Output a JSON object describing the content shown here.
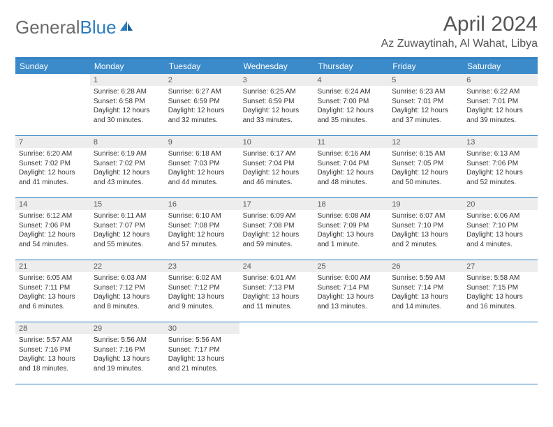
{
  "logo": {
    "general": "General",
    "blue": "Blue"
  },
  "title": "April 2024",
  "location": "Az Zuwaytinah, Al Wahat, Libya",
  "colors": {
    "header_bg": "#3b8aca",
    "border": "#2b7bbf",
    "daynum_bg": "#ededed",
    "text": "#333333",
    "muted": "#555555"
  },
  "day_names": [
    "Sunday",
    "Monday",
    "Tuesday",
    "Wednesday",
    "Thursday",
    "Friday",
    "Saturday"
  ],
  "weeks": [
    [
      {
        "day": "",
        "sunrise": "",
        "sunset": "",
        "daylight": ""
      },
      {
        "day": "1",
        "sunrise": "Sunrise: 6:28 AM",
        "sunset": "Sunset: 6:58 PM",
        "daylight": "Daylight: 12 hours and 30 minutes."
      },
      {
        "day": "2",
        "sunrise": "Sunrise: 6:27 AM",
        "sunset": "Sunset: 6:59 PM",
        "daylight": "Daylight: 12 hours and 32 minutes."
      },
      {
        "day": "3",
        "sunrise": "Sunrise: 6:25 AM",
        "sunset": "Sunset: 6:59 PM",
        "daylight": "Daylight: 12 hours and 33 minutes."
      },
      {
        "day": "4",
        "sunrise": "Sunrise: 6:24 AM",
        "sunset": "Sunset: 7:00 PM",
        "daylight": "Daylight: 12 hours and 35 minutes."
      },
      {
        "day": "5",
        "sunrise": "Sunrise: 6:23 AM",
        "sunset": "Sunset: 7:01 PM",
        "daylight": "Daylight: 12 hours and 37 minutes."
      },
      {
        "day": "6",
        "sunrise": "Sunrise: 6:22 AM",
        "sunset": "Sunset: 7:01 PM",
        "daylight": "Daylight: 12 hours and 39 minutes."
      }
    ],
    [
      {
        "day": "7",
        "sunrise": "Sunrise: 6:20 AM",
        "sunset": "Sunset: 7:02 PM",
        "daylight": "Daylight: 12 hours and 41 minutes."
      },
      {
        "day": "8",
        "sunrise": "Sunrise: 6:19 AM",
        "sunset": "Sunset: 7:02 PM",
        "daylight": "Daylight: 12 hours and 43 minutes."
      },
      {
        "day": "9",
        "sunrise": "Sunrise: 6:18 AM",
        "sunset": "Sunset: 7:03 PM",
        "daylight": "Daylight: 12 hours and 44 minutes."
      },
      {
        "day": "10",
        "sunrise": "Sunrise: 6:17 AM",
        "sunset": "Sunset: 7:04 PM",
        "daylight": "Daylight: 12 hours and 46 minutes."
      },
      {
        "day": "11",
        "sunrise": "Sunrise: 6:16 AM",
        "sunset": "Sunset: 7:04 PM",
        "daylight": "Daylight: 12 hours and 48 minutes."
      },
      {
        "day": "12",
        "sunrise": "Sunrise: 6:15 AM",
        "sunset": "Sunset: 7:05 PM",
        "daylight": "Daylight: 12 hours and 50 minutes."
      },
      {
        "day": "13",
        "sunrise": "Sunrise: 6:13 AM",
        "sunset": "Sunset: 7:06 PM",
        "daylight": "Daylight: 12 hours and 52 minutes."
      }
    ],
    [
      {
        "day": "14",
        "sunrise": "Sunrise: 6:12 AM",
        "sunset": "Sunset: 7:06 PM",
        "daylight": "Daylight: 12 hours and 54 minutes."
      },
      {
        "day": "15",
        "sunrise": "Sunrise: 6:11 AM",
        "sunset": "Sunset: 7:07 PM",
        "daylight": "Daylight: 12 hours and 55 minutes."
      },
      {
        "day": "16",
        "sunrise": "Sunrise: 6:10 AM",
        "sunset": "Sunset: 7:08 PM",
        "daylight": "Daylight: 12 hours and 57 minutes."
      },
      {
        "day": "17",
        "sunrise": "Sunrise: 6:09 AM",
        "sunset": "Sunset: 7:08 PM",
        "daylight": "Daylight: 12 hours and 59 minutes."
      },
      {
        "day": "18",
        "sunrise": "Sunrise: 6:08 AM",
        "sunset": "Sunset: 7:09 PM",
        "daylight": "Daylight: 13 hours and 1 minute."
      },
      {
        "day": "19",
        "sunrise": "Sunrise: 6:07 AM",
        "sunset": "Sunset: 7:10 PM",
        "daylight": "Daylight: 13 hours and 2 minutes."
      },
      {
        "day": "20",
        "sunrise": "Sunrise: 6:06 AM",
        "sunset": "Sunset: 7:10 PM",
        "daylight": "Daylight: 13 hours and 4 minutes."
      }
    ],
    [
      {
        "day": "21",
        "sunrise": "Sunrise: 6:05 AM",
        "sunset": "Sunset: 7:11 PM",
        "daylight": "Daylight: 13 hours and 6 minutes."
      },
      {
        "day": "22",
        "sunrise": "Sunrise: 6:03 AM",
        "sunset": "Sunset: 7:12 PM",
        "daylight": "Daylight: 13 hours and 8 minutes."
      },
      {
        "day": "23",
        "sunrise": "Sunrise: 6:02 AM",
        "sunset": "Sunset: 7:12 PM",
        "daylight": "Daylight: 13 hours and 9 minutes."
      },
      {
        "day": "24",
        "sunrise": "Sunrise: 6:01 AM",
        "sunset": "Sunset: 7:13 PM",
        "daylight": "Daylight: 13 hours and 11 minutes."
      },
      {
        "day": "25",
        "sunrise": "Sunrise: 6:00 AM",
        "sunset": "Sunset: 7:14 PM",
        "daylight": "Daylight: 13 hours and 13 minutes."
      },
      {
        "day": "26",
        "sunrise": "Sunrise: 5:59 AM",
        "sunset": "Sunset: 7:14 PM",
        "daylight": "Daylight: 13 hours and 14 minutes."
      },
      {
        "day": "27",
        "sunrise": "Sunrise: 5:58 AM",
        "sunset": "Sunset: 7:15 PM",
        "daylight": "Daylight: 13 hours and 16 minutes."
      }
    ],
    [
      {
        "day": "28",
        "sunrise": "Sunrise: 5:57 AM",
        "sunset": "Sunset: 7:16 PM",
        "daylight": "Daylight: 13 hours and 18 minutes."
      },
      {
        "day": "29",
        "sunrise": "Sunrise: 5:56 AM",
        "sunset": "Sunset: 7:16 PM",
        "daylight": "Daylight: 13 hours and 19 minutes."
      },
      {
        "day": "30",
        "sunrise": "Sunrise: 5:56 AM",
        "sunset": "Sunset: 7:17 PM",
        "daylight": "Daylight: 13 hours and 21 minutes."
      },
      {
        "day": "",
        "sunrise": "",
        "sunset": "",
        "daylight": ""
      },
      {
        "day": "",
        "sunrise": "",
        "sunset": "",
        "daylight": ""
      },
      {
        "day": "",
        "sunrise": "",
        "sunset": "",
        "daylight": ""
      },
      {
        "day": "",
        "sunrise": "",
        "sunset": "",
        "daylight": ""
      }
    ]
  ]
}
